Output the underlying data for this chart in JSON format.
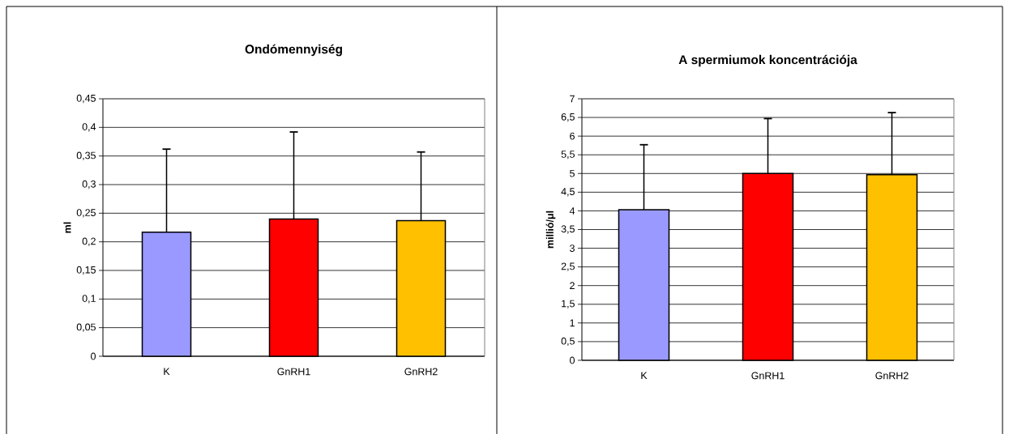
{
  "chart_data": [
    {
      "type": "bar",
      "title": "Ondómennyiség",
      "ylabel": "ml",
      "categories": [
        "K",
        "GnRH1",
        "GnRH2"
      ],
      "values": [
        0.217,
        0.24,
        0.237
      ],
      "colors": [
        "#9999ff",
        "#ff0000",
        "#ffc000"
      ],
      "errors": [
        [
          0.217,
          0.362
        ],
        [
          0.24,
          0.392
        ],
        [
          0.237,
          0.357
        ]
      ],
      "ylim": [
        0,
        0.45
      ],
      "yticks": [
        0,
        {
          "value": 0.05,
          "label": "0,05"
        },
        {
          "value": 0.1,
          "label": "0,1"
        },
        {
          "value": 0.15,
          "label": "0,15"
        },
        {
          "value": 0.2,
          "label": "0,2"
        },
        {
          "value": 0.25,
          "label": "0,25"
        },
        {
          "value": 0.3,
          "label": "0,3"
        },
        {
          "value": 0.35,
          "label": "0,35"
        },
        {
          "value": 0.4,
          "label": "0,4"
        },
        {
          "value": 0.45,
          "label": "0,45"
        }
      ],
      "grid": "y"
    },
    {
      "type": "bar",
      "title": "A spermiumok koncentrációja",
      "ylabel": "millió/μl",
      "categories": [
        "K",
        "GnRH1",
        "GnRH2"
      ],
      "values": [
        4.03,
        5.0,
        4.97
      ],
      "colors": [
        "#9999ff",
        "#ff0000",
        "#ffc000"
      ],
      "errors": [
        [
          4.03,
          5.77
        ],
        [
          5.0,
          6.47
        ],
        [
          4.97,
          6.63
        ]
      ],
      "ylim": [
        0,
        7
      ],
      "yticks": [
        0,
        {
          "value": 0.5,
          "label": "0,5"
        },
        1,
        {
          "value": 1.5,
          "label": "1,5"
        },
        2,
        {
          "value": 2.5,
          "label": "2,5"
        },
        3,
        {
          "value": 3.5,
          "label": "3,5"
        },
        4,
        {
          "value": 4.5,
          "label": "4,5"
        },
        5,
        {
          "value": 5.5,
          "label": "5,5"
        },
        6,
        {
          "value": 6.5,
          "label": "6,5"
        },
        7
      ],
      "grid": "y"
    }
  ]
}
